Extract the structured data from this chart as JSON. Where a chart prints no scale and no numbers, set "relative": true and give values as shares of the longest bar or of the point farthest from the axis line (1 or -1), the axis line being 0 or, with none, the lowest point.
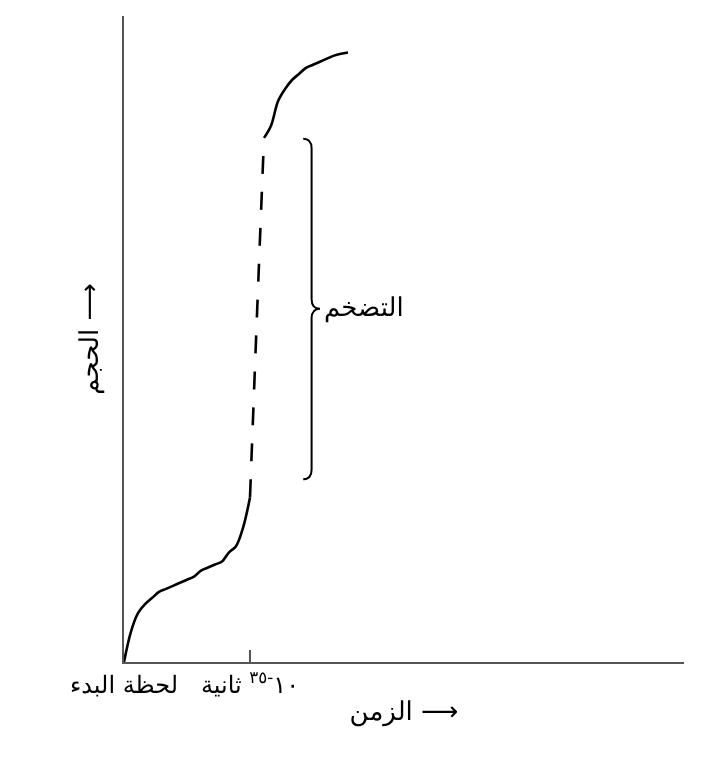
{
  "chart_data": {
    "type": "line",
    "relative": true,
    "xlabel": "الزمن ⟶",
    "ylabel": "الحجم ⟶",
    "categories": [
      "لحظة البدء",
      null,
      null,
      null,
      null,
      null,
      null,
      null,
      null,
      null,
      null,
      null,
      null,
      null,
      null,
      null,
      null,
      null,
      "١٠$^{-٣٥}$ ثانية",
      null,
      null,
      null,
      null,
      null,
      null,
      null,
      null,
      null,
      null,
      null,
      null,
      null,
      null,
      null,
      null,
      null,
      null,
      null,
      null,
      null,
      null,
      null,
      null,
      null,
      null,
      null,
      null,
      null,
      null,
      null,
      null,
      null,
      null,
      null,
      null,
      null,
      null,
      null,
      null,
      null,
      null,
      null,
      null,
      null,
      null,
      null,
      null,
      null,
      null,
      null,
      null,
      null,
      null,
      null,
      null,
      null,
      null,
      null,
      null,
      null,
      null
    ],
    "tick_labels": "x",
    "marker": "none",
    "series": [
      {
        "color": "#000000",
        "line_style": "solid",
        "values": [
          0,
          0.05,
          0.08,
          0.095,
          0.105,
          0.115,
          0.12,
          0.125,
          0.13,
          0.135,
          0.14,
          0.15,
          0.155,
          0.16,
          0.165,
          0.18,
          0.19,
          0.22,
          0.27,
          null,
          null,
          null,
          null,
          null,
          null,
          null,
          null,
          null,
          null,
          null,
          null,
          null,
          null,
          null,
          null,
          null,
          null,
          null,
          null,
          null,
          null,
          null,
          null,
          null,
          null,
          null,
          null,
          null,
          null,
          null,
          null,
          null,
          null,
          null,
          null,
          null,
          null,
          null,
          null,
          null,
          null,
          null,
          null,
          null,
          null,
          null,
          null,
          null,
          null,
          null,
          null,
          null,
          null,
          null,
          null,
          null,
          null,
          null,
          null,
          null,
          null
        ]
      },
      {
        "color": "#000000",
        "line_style": "dashed",
        "values": [
          null,
          null,
          null,
          null,
          null,
          null,
          null,
          null,
          null,
          null,
          null,
          null,
          null,
          null,
          null,
          null,
          null,
          null,
          0.27,
          0.57,
          0.86,
          null,
          null,
          null,
          null,
          null,
          null,
          null,
          null,
          null,
          null,
          null,
          null,
          null,
          null,
          null,
          null,
          null,
          null,
          null,
          null,
          null,
          null,
          null,
          null,
          null,
          null,
          null,
          null,
          null,
          null,
          null,
          null,
          null,
          null,
          null,
          null,
          null,
          null,
          null,
          null,
          null,
          null,
          null,
          null,
          null,
          null,
          null,
          null,
          null,
          null,
          null,
          null,
          null,
          null,
          null,
          null,
          null,
          null,
          null,
          null
        ]
      },
      {
        "color": "#000000",
        "line_style": "solid",
        "values": [
          null,
          null,
          null,
          null,
          null,
          null,
          null,
          null,
          null,
          null,
          null,
          null,
          null,
          null,
          null,
          null,
          null,
          null,
          null,
          null,
          0.86,
          0.88,
          0.92,
          0.94,
          0.955,
          0.965,
          0.975,
          0.98,
          0.985,
          0.99,
          0.995,
          0.998,
          1,
          null,
          null,
          null,
          null,
          null,
          null,
          null,
          null,
          null,
          null,
          null,
          null,
          null,
          null,
          null,
          null,
          null,
          null,
          null,
          null,
          null,
          null,
          null,
          null,
          null,
          null,
          null,
          null,
          null,
          null,
          null,
          null,
          null,
          null,
          null,
          null,
          null,
          null,
          null,
          null,
          null,
          null,
          null,
          null,
          null,
          null,
          null,
          null
        ]
      }
    ],
    "annotations": [
      "التضخم"
    ]
  }
}
